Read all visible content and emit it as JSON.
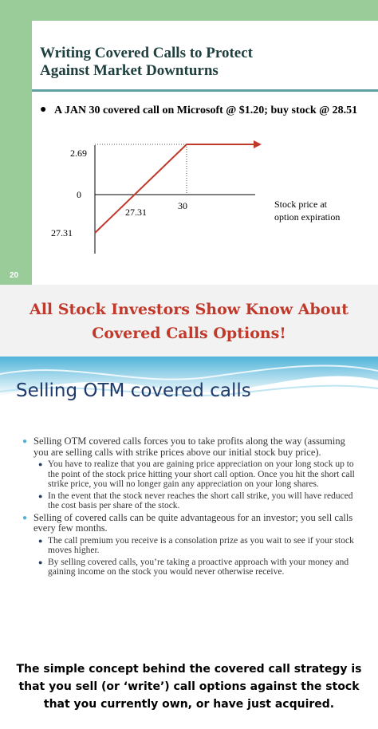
{
  "slide1": {
    "title_line1": "Writing Covered Calls to Protect",
    "title_line2": "Against Market Downturns",
    "bullet": "A JAN 30 covered call on Microsoft @ $1.20; buy stock @ 28.51",
    "slide_number": "20",
    "chart_data": {
      "type": "line",
      "y_labels": [
        "2.69",
        "0",
        "27.31"
      ],
      "x_labels": [
        "27.31",
        "30"
      ],
      "annotation": "Stock price at option expiration",
      "colors": {
        "payoff_line": "#c0392b",
        "axes": "#000000"
      }
    }
  },
  "banner": {
    "line1": "All Stock Investors Show Know About",
    "line2": "Covered Calls Options!"
  },
  "slide2": {
    "title": "Selling OTM covered calls",
    "items": [
      {
        "level": 1,
        "text": "Selling OTM covered calls forces you to take profits along the way (assuming you are selling calls with strike prices above our initial stock buy price)."
      },
      {
        "level": 2,
        "text": "You have to realize that you are gaining price appreciation on your long stock up to the point of the stock price hitting your short call option. Once you hit the short call strike price, you will no longer gain any appreciation on your long shares."
      },
      {
        "level": 2,
        "text": "In the event that the stock never reaches the short call strike, you will have reduced the cost basis per share of the stock."
      },
      {
        "level": 1,
        "text": "Selling of covered calls can be quite advantageous for an investor; you sell calls every few months."
      },
      {
        "level": 2,
        "text": "The call premium you receive is a consolation prize as you wait to see if your stock moves higher."
      },
      {
        "level": 2,
        "text": "By selling covered calls, you’re taking a proactive approach with your money and gaining income on the stock you would never otherwise receive."
      }
    ]
  },
  "caption": {
    "text": "The simple concept behind the covered call strategy is that you sell (or ‘write’) call options against the stock that you currently own, or have just acquired."
  }
}
